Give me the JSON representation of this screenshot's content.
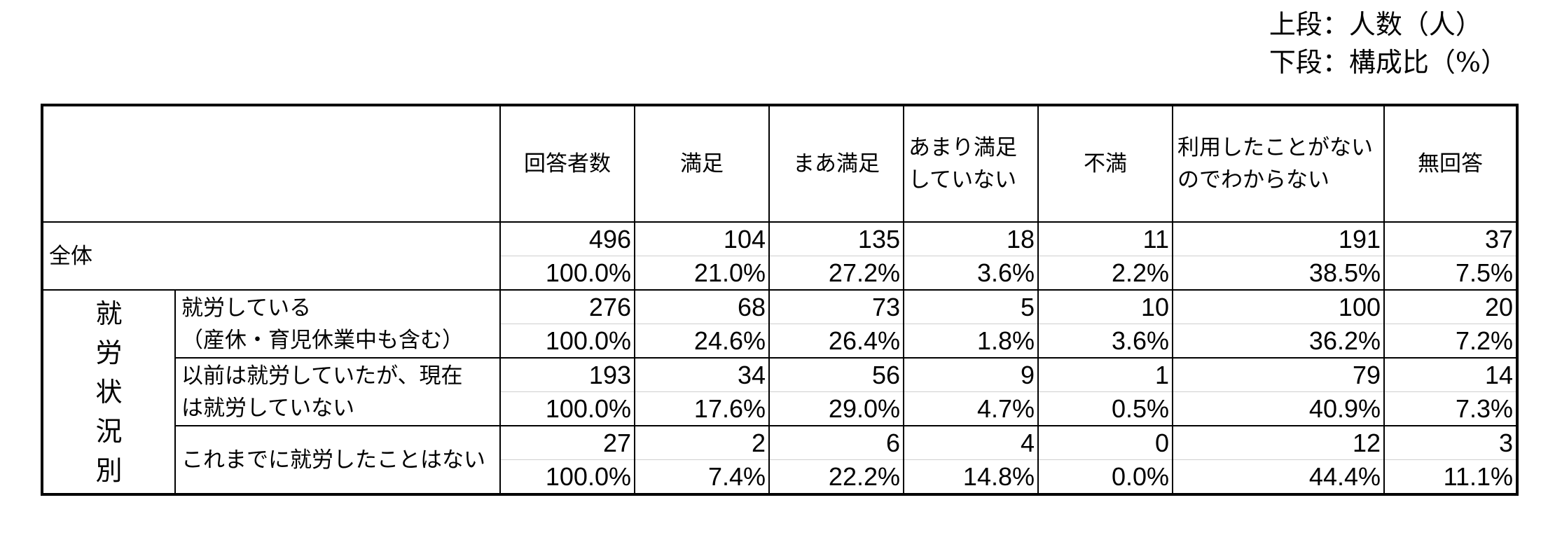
{
  "legend": {
    "line1": "上段：人数（人）",
    "line2": "下段：構成比（%）"
  },
  "header": {
    "columns": [
      "回答者数",
      "満足",
      "まあ満足",
      "あまり満足\nしていない",
      "不満",
      "利用したことがない\nのでわからない",
      "無回答"
    ]
  },
  "group_label": "就労状況別",
  "rows": [
    {
      "label": "全体",
      "counts": [
        "496",
        "104",
        "135",
        "18",
        "11",
        "191",
        "37"
      ],
      "percents": [
        "100.0%",
        "21.0%",
        "27.2%",
        "3.6%",
        "2.2%",
        "38.5%",
        "7.5%"
      ]
    },
    {
      "label": "就労している\n（産休・育児休業中も含む）",
      "counts": [
        "276",
        "68",
        "73",
        "5",
        "10",
        "100",
        "20"
      ],
      "percents": [
        "100.0%",
        "24.6%",
        "26.4%",
        "1.8%",
        "3.6%",
        "36.2%",
        "7.2%"
      ]
    },
    {
      "label": "以前は就労していたが、現在\nは就労していない",
      "counts": [
        "193",
        "34",
        "56",
        "9",
        "1",
        "79",
        "14"
      ],
      "percents": [
        "100.0%",
        "17.6%",
        "29.0%",
        "4.7%",
        "0.5%",
        "40.9%",
        "7.3%"
      ]
    },
    {
      "label": "これまでに就労したことはない",
      "counts": [
        "27",
        "2",
        "6",
        "4",
        "0",
        "12",
        "3"
      ],
      "percents": [
        "100.0%",
        "7.4%",
        "22.2%",
        "14.8%",
        "0.0%",
        "44.4%",
        "11.1%"
      ]
    }
  ]
}
